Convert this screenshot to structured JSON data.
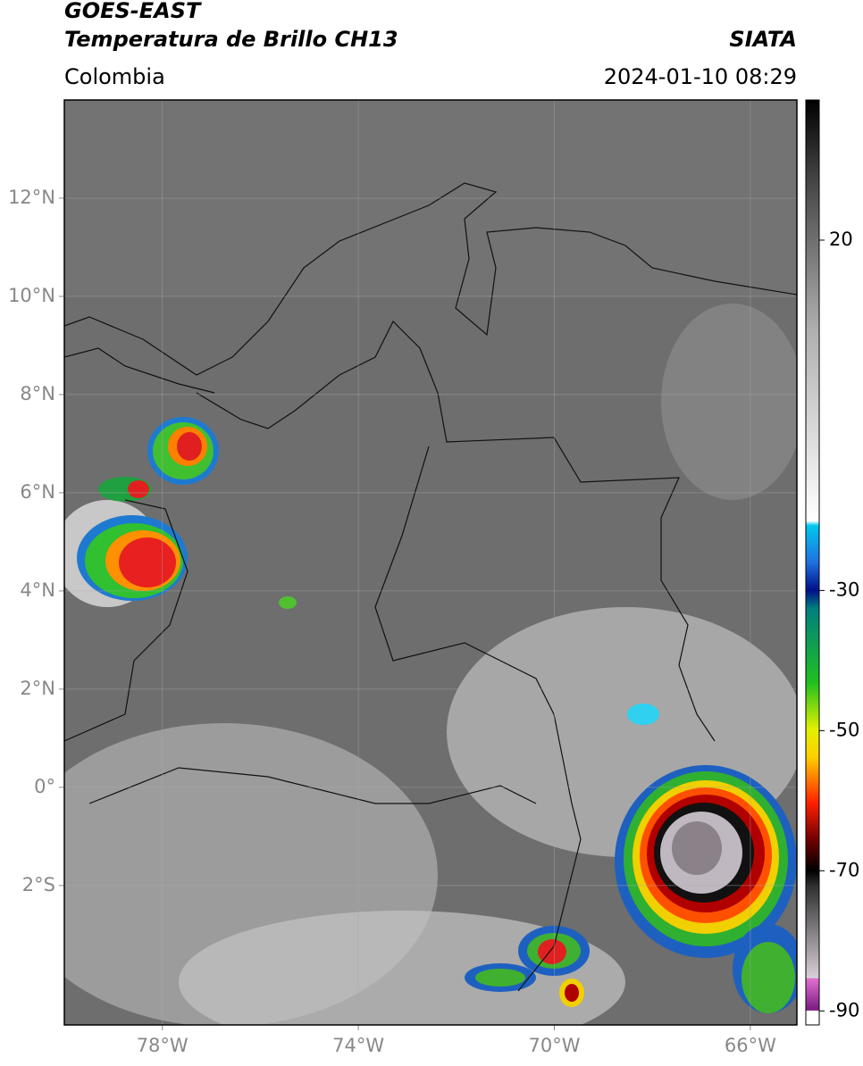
{
  "header": {
    "title": "GOES-EAST",
    "subtitle": "Temperatura de Brillo CH13",
    "source": "SIATA",
    "region": "Colombia",
    "datetime": "2024-01-10 08:29"
  },
  "map": {
    "xlim": [
      -80,
      -65.05
    ],
    "ylim": [
      -4.84,
      14
    ],
    "xticks": [
      {
        "value": -78,
        "label": "78°W"
      },
      {
        "value": -74,
        "label": "74°W"
      },
      {
        "value": -70,
        "label": "70°W"
      },
      {
        "value": -66,
        "label": "66°W"
      }
    ],
    "yticks": [
      {
        "value": 12,
        "label": "12°N"
      },
      {
        "value": 10,
        "label": "10°N"
      },
      {
        "value": 8,
        "label": "8°N"
      },
      {
        "value": 6,
        "label": "6°N"
      },
      {
        "value": 4,
        "label": "4°N"
      },
      {
        "value": 2,
        "label": "2°N"
      },
      {
        "value": 0,
        "label": "0°"
      },
      {
        "value": -2,
        "label": "2°S"
      }
    ],
    "grid": true
  },
  "colorbar": {
    "lim": [
      -92,
      40
    ],
    "ticks": [
      20,
      -30,
      -50,
      -70,
      -90
    ]
  }
}
